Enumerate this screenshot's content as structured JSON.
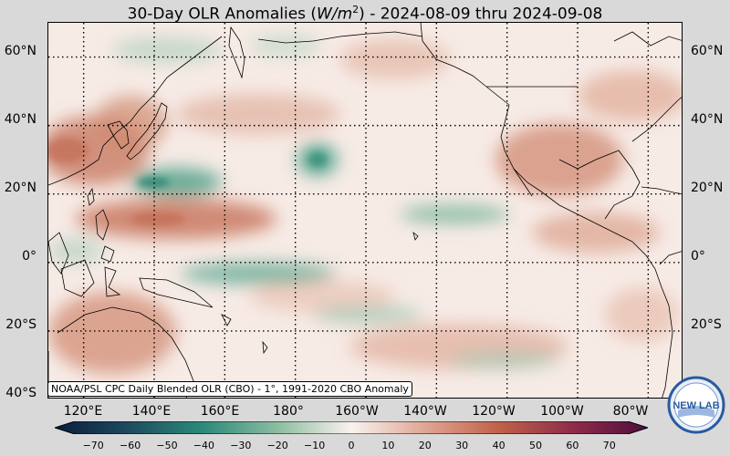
{
  "title": {
    "prefix": "30-Day OLR Anomalies (",
    "unit_base": "W/m",
    "unit_exp": "2",
    "suffix": ") - 2024-08-09 thru 2024-09-08"
  },
  "map": {
    "projection": "equirectangular",
    "lon_range": [
      110,
      290
    ],
    "lat_range": [
      -40,
      70
    ],
    "gridlines": "dotted",
    "lat_labels": [
      "60°N",
      "40°N",
      "20°N",
      "0°",
      "20°S",
      "40°S"
    ],
    "lon_labels": [
      "120°E",
      "140°E",
      "160°E",
      "180°",
      "160°W",
      "140°W",
      "120°W",
      "100°W",
      "80°W"
    ],
    "colors": {
      "positive_anomaly": "#c47058",
      "negative_anomaly": "#2e8f7a",
      "neutral": "#f7ebe6",
      "coastline": "#000000"
    },
    "features": [
      {
        "type": "positive",
        "region": "East Asia / Japan"
      },
      {
        "type": "negative",
        "region": "Philippine Sea"
      },
      {
        "type": "negative",
        "region": "Central North Pacific"
      },
      {
        "type": "positive",
        "region": "Western tropical Pacific near 10°N"
      },
      {
        "type": "negative",
        "region": "Eastern tropical Pacific ITCZ"
      },
      {
        "type": "negative",
        "region": "Equatorial western Pacific / SPCZ"
      },
      {
        "type": "positive",
        "region": "Mexico and southwestern US"
      },
      {
        "type": "positive",
        "region": "Australia"
      }
    ]
  },
  "source_note": "NOAA/PSL CPC Daily Blended OLR (CBO) - 1°, 1991-2020 CBO Anomaly",
  "colorbar": {
    "ticks": [
      "−70",
      "−60",
      "−50",
      "−40",
      "−30",
      "−20",
      "−10",
      "0",
      "10",
      "20",
      "30",
      "40",
      "50",
      "60",
      "70"
    ],
    "range": [
      -75,
      75
    ],
    "low_color": "#0d1b3e",
    "high_color": "#4d0f3e"
  },
  "logo": {
    "text": "NEW LAB",
    "color": "#2a5aa0"
  }
}
